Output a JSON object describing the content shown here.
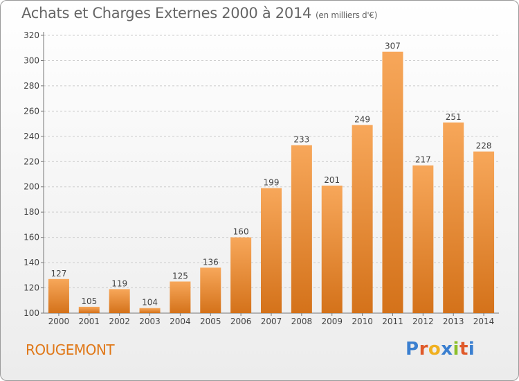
{
  "title": "Achats et Charges Externes 2000 à 2014",
  "unit": "(en milliers d'€)",
  "place": "ROUGEMONT",
  "logo": "Proxiti",
  "colors": {
    "bar_light": "#f7a75a",
    "bar_dark": "#d4721a",
    "place_text": "#e07818",
    "grid": "#cccccc"
  },
  "chart_data": {
    "type": "bar",
    "title": "Achats et Charges Externes 2000 à 2014",
    "subtitle": "(en milliers d'€)",
    "categories": [
      "2000",
      "2001",
      "2002",
      "2003",
      "2004",
      "2005",
      "2006",
      "2007",
      "2008",
      "2009",
      "2010",
      "2011",
      "2012",
      "2013",
      "2014"
    ],
    "values": [
      127,
      105,
      119,
      104,
      125,
      136,
      160,
      199,
      233,
      201,
      249,
      307,
      217,
      251,
      228
    ],
    "ylim": [
      100,
      320
    ],
    "yticks": [
      100,
      120,
      140,
      160,
      180,
      200,
      220,
      240,
      260,
      280,
      300,
      320
    ],
    "grid": true,
    "data_labels": true
  }
}
